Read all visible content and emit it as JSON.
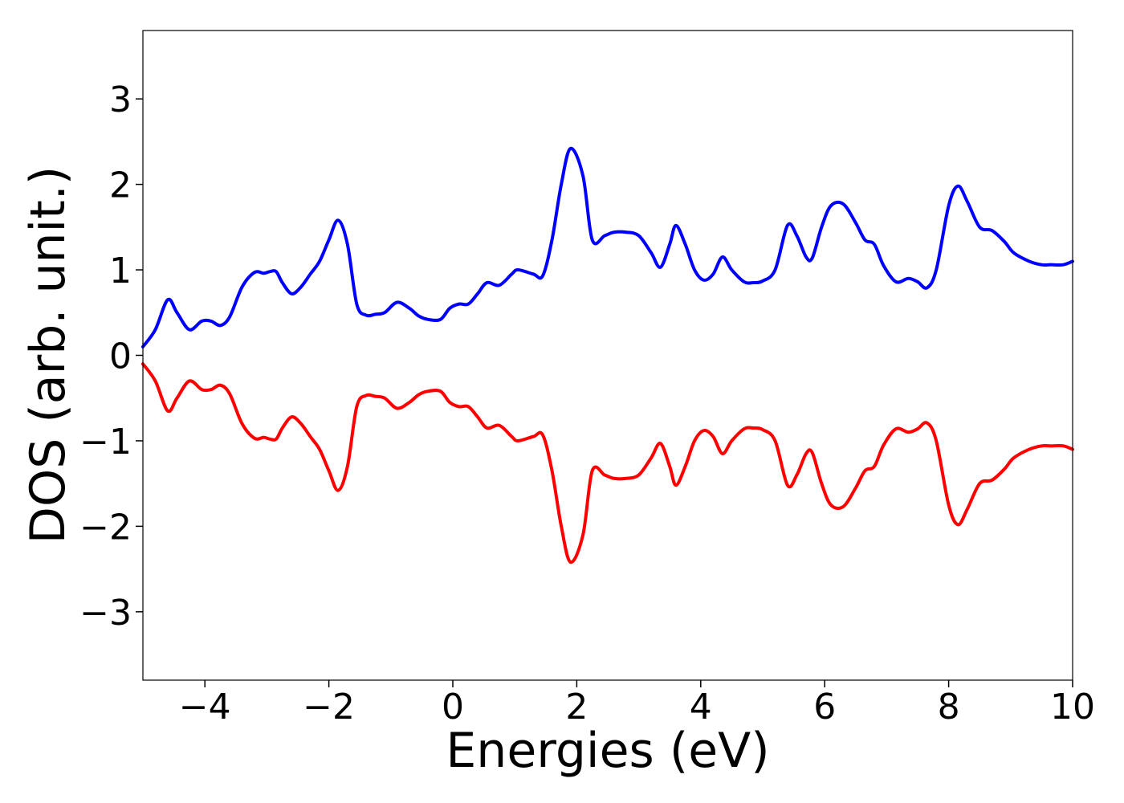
{
  "chart_data": {
    "type": "line",
    "title": "",
    "xlabel": "Energies (eV)",
    "ylabel": "DOS (arb. unit.)",
    "xlim": [
      -5,
      10
    ],
    "ylim": [
      -3.8,
      3.8
    ],
    "grid": false,
    "x_ticks": [
      -4,
      -2,
      0,
      2,
      4,
      6,
      8,
      10
    ],
    "x_tick_labels": [
      "−4",
      "−2",
      "0",
      "2",
      "4",
      "6",
      "8",
      "10"
    ],
    "y_ticks": [
      -3,
      -2,
      -1,
      0,
      1,
      2,
      3
    ],
    "y_tick_labels": [
      "−3",
      "−2",
      "−1",
      "0",
      "1",
      "2",
      "3"
    ],
    "series": [
      {
        "color": "#0000ff",
        "x": [
          -5.0,
          -4.8,
          -4.6,
          -4.45,
          -4.25,
          -4.05,
          -3.9,
          -3.75,
          -3.6,
          -3.4,
          -3.2,
          -3.05,
          -2.95,
          -2.85,
          -2.75,
          -2.6,
          -2.45,
          -2.3,
          -2.15,
          -2.0,
          -1.85,
          -1.7,
          -1.55,
          -1.4,
          -1.25,
          -1.1,
          -0.9,
          -0.7,
          -0.55,
          -0.4,
          -0.2,
          -0.05,
          0.1,
          0.25,
          0.4,
          0.55,
          0.75,
          0.95,
          1.05,
          1.3,
          1.45,
          1.6,
          1.75,
          1.9,
          2.1,
          2.25,
          2.45,
          2.6,
          2.8,
          3.0,
          3.2,
          3.35,
          3.5,
          3.6,
          3.75,
          3.9,
          4.05,
          4.2,
          4.35,
          4.5,
          4.7,
          4.85,
          5.0,
          5.2,
          5.4,
          5.55,
          5.7,
          5.8,
          5.95,
          6.1,
          6.3,
          6.5,
          6.65,
          6.8,
          6.95,
          7.15,
          7.35,
          7.5,
          7.65,
          7.8,
          8.0,
          8.15,
          8.3,
          8.5,
          8.7,
          8.9,
          9.05,
          9.3,
          9.5,
          9.65,
          9.85,
          10.0
        ],
        "y": [
          0.1,
          0.3,
          0.65,
          0.5,
          0.3,
          0.4,
          0.4,
          0.35,
          0.45,
          0.8,
          0.97,
          0.96,
          0.98,
          0.98,
          0.85,
          0.72,
          0.8,
          0.95,
          1.1,
          1.35,
          1.58,
          1.3,
          0.6,
          0.47,
          0.48,
          0.5,
          0.62,
          0.55,
          0.46,
          0.42,
          0.42,
          0.55,
          0.6,
          0.6,
          0.72,
          0.85,
          0.82,
          0.95,
          1.0,
          0.95,
          0.93,
          1.35,
          2.0,
          2.42,
          2.1,
          1.35,
          1.4,
          1.44,
          1.44,
          1.4,
          1.2,
          1.03,
          1.3,
          1.52,
          1.3,
          1.0,
          0.88,
          0.95,
          1.15,
          1.0,
          0.86,
          0.85,
          0.87,
          1.0,
          1.52,
          1.4,
          1.15,
          1.14,
          1.5,
          1.75,
          1.77,
          1.55,
          1.35,
          1.3,
          1.05,
          0.86,
          0.9,
          0.86,
          0.79,
          1.0,
          1.75,
          1.98,
          1.8,
          1.5,
          1.46,
          1.33,
          1.2,
          1.1,
          1.06,
          1.06,
          1.06,
          1.1
        ]
      },
      {
        "color": "#ff0000",
        "x": [
          -5.0,
          -4.8,
          -4.6,
          -4.45,
          -4.25,
          -4.05,
          -3.9,
          -3.75,
          -3.6,
          -3.4,
          -3.2,
          -3.05,
          -2.95,
          -2.85,
          -2.75,
          -2.6,
          -2.45,
          -2.3,
          -2.15,
          -2.0,
          -1.85,
          -1.7,
          -1.55,
          -1.4,
          -1.25,
          -1.1,
          -0.9,
          -0.7,
          -0.55,
          -0.4,
          -0.2,
          -0.05,
          0.1,
          0.25,
          0.4,
          0.55,
          0.75,
          0.95,
          1.05,
          1.3,
          1.45,
          1.6,
          1.75,
          1.9,
          2.1,
          2.25,
          2.45,
          2.6,
          2.8,
          3.0,
          3.2,
          3.35,
          3.5,
          3.6,
          3.75,
          3.9,
          4.05,
          4.2,
          4.35,
          4.5,
          4.7,
          4.85,
          5.0,
          5.2,
          5.4,
          5.55,
          5.7,
          5.8,
          5.95,
          6.1,
          6.3,
          6.5,
          6.65,
          6.8,
          6.95,
          7.15,
          7.35,
          7.5,
          7.65,
          7.8,
          8.0,
          8.15,
          8.3,
          8.5,
          8.7,
          8.9,
          9.05,
          9.3,
          9.5,
          9.65,
          9.85,
          10.0
        ],
        "y": [
          -0.1,
          -0.3,
          -0.65,
          -0.5,
          -0.3,
          -0.4,
          -0.4,
          -0.35,
          -0.45,
          -0.8,
          -0.97,
          -0.96,
          -0.98,
          -0.98,
          -0.85,
          -0.72,
          -0.8,
          -0.95,
          -1.1,
          -1.35,
          -1.58,
          -1.3,
          -0.6,
          -0.47,
          -0.48,
          -0.5,
          -0.62,
          -0.55,
          -0.46,
          -0.42,
          -0.42,
          -0.55,
          -0.6,
          -0.6,
          -0.72,
          -0.85,
          -0.82,
          -0.95,
          -1.0,
          -0.95,
          -0.93,
          -1.35,
          -2.0,
          -2.42,
          -2.1,
          -1.35,
          -1.4,
          -1.44,
          -1.44,
          -1.4,
          -1.2,
          -1.03,
          -1.3,
          -1.52,
          -1.3,
          -1.0,
          -0.88,
          -0.95,
          -1.15,
          -1.0,
          -0.86,
          -0.85,
          -0.87,
          -1.0,
          -1.52,
          -1.4,
          -1.15,
          -1.14,
          -1.5,
          -1.75,
          -1.77,
          -1.55,
          -1.35,
          -1.3,
          -1.05,
          -0.86,
          -0.9,
          -0.86,
          -0.79,
          -1.0,
          -1.75,
          -1.98,
          -1.8,
          -1.5,
          -1.46,
          -1.33,
          -1.2,
          -1.1,
          -1.06,
          -1.06,
          -1.06,
          -1.1
        ]
      }
    ]
  }
}
